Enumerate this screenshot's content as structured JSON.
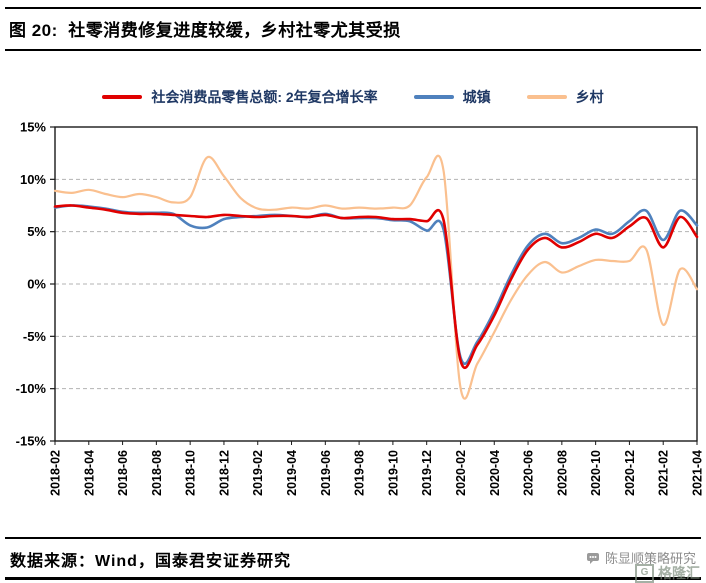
{
  "page": {
    "title": "图 20:  社零消费修复进度较缓，乡村社零尤其受损",
    "source": "数据来源：Wind，国泰君安证券研究",
    "watermark": "陈显顺策略研究",
    "logo": "格隆汇",
    "logo_mark": "G"
  },
  "chart_data": {
    "type": "line",
    "title": "图 20: 社零消费修复进度较缓，乡村社零尤其受损",
    "x": [
      "2018-02",
      "2018-03",
      "2018-04",
      "2018-05",
      "2018-06",
      "2018-07",
      "2018-08",
      "2018-09",
      "2018-10",
      "2018-11",
      "2018-12",
      "2019-01",
      "2019-02",
      "2019-03",
      "2019-04",
      "2019-05",
      "2019-06",
      "2019-07",
      "2019-08",
      "2019-09",
      "2019-10",
      "2019-11",
      "2019-12",
      "2020-01",
      "2020-02",
      "2020-03",
      "2020-04",
      "2020-05",
      "2020-06",
      "2020-07",
      "2020-08",
      "2020-09",
      "2020-10",
      "2020-11",
      "2020-12",
      "2021-01",
      "2021-02",
      "2021-03",
      "2021-04"
    ],
    "x_tick_step": 2,
    "ylim": [
      -15,
      15
    ],
    "ytick_step": 5,
    "y_unit": "%",
    "grid": "horizontal-dashed",
    "legend_position": "top",
    "series": [
      {
        "name": "社会消费品零售总额: 2年复合增长率",
        "color": "#e00000",
        "width": 2.6,
        "values": [
          7.4,
          7.5,
          7.3,
          7.1,
          6.8,
          6.7,
          6.7,
          6.6,
          6.5,
          6.4,
          6.6,
          6.5,
          6.4,
          6.5,
          6.5,
          6.4,
          6.6,
          6.3,
          6.4,
          6.4,
          6.2,
          6.2,
          6.0,
          6.1,
          -7.3,
          -5.8,
          -3.0,
          0.5,
          3.3,
          4.4,
          3.5,
          4.0,
          4.8,
          4.4,
          5.5,
          6.3,
          3.5,
          6.4,
          4.5
        ]
      },
      {
        "name": "城镇",
        "color": "#4f81bd",
        "width": 2.6,
        "values": [
          7.3,
          7.5,
          7.4,
          7.2,
          6.9,
          6.8,
          6.8,
          6.7,
          5.6,
          5.4,
          6.2,
          6.4,
          6.5,
          6.6,
          6.5,
          6.4,
          6.7,
          6.3,
          6.3,
          6.3,
          6.1,
          6.0,
          5.1,
          5.2,
          -7.0,
          -5.5,
          -2.6,
          0.9,
          3.7,
          4.8,
          3.9,
          4.4,
          5.2,
          4.8,
          6.0,
          7.0,
          4.2,
          7.0,
          5.6
        ]
      },
      {
        "name": "乡村",
        "color": "#fac08f",
        "width": 2.2,
        "values": [
          8.9,
          8.7,
          9.0,
          8.6,
          8.3,
          8.6,
          8.3,
          7.8,
          8.3,
          12.1,
          10.3,
          8.2,
          7.2,
          7.1,
          7.3,
          7.2,
          7.5,
          7.2,
          7.3,
          7.2,
          7.3,
          7.5,
          10.2,
          10.8,
          -9.9,
          -7.6,
          -4.6,
          -1.5,
          0.9,
          2.1,
          1.1,
          1.7,
          2.3,
          2.2,
          2.2,
          3.3,
          -3.9,
          1.4,
          -0.5
        ]
      }
    ]
  }
}
